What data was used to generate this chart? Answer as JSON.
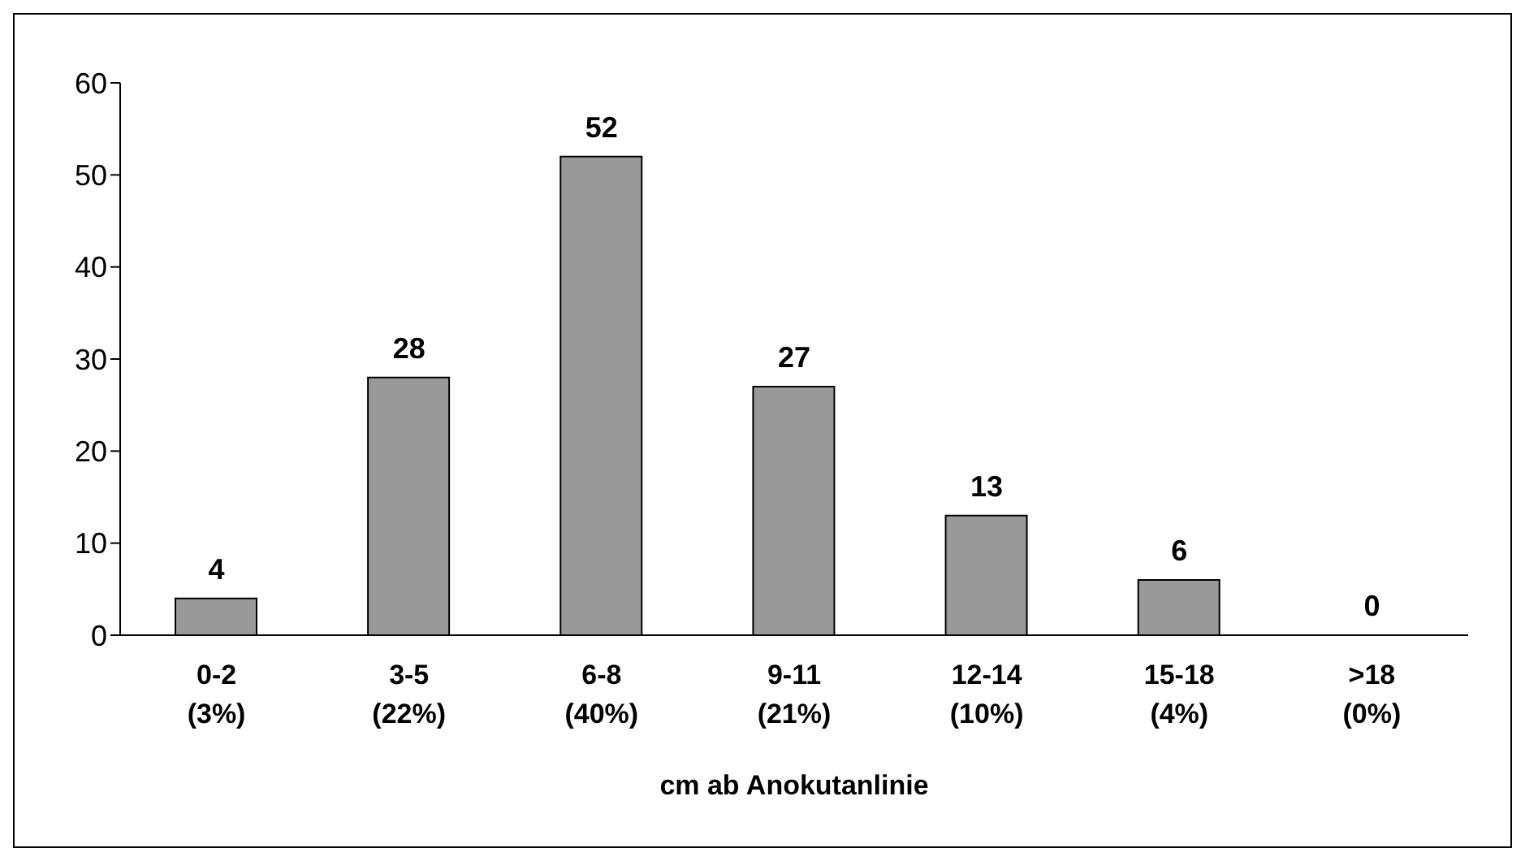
{
  "chart_data": {
    "type": "bar",
    "xlabel": "cm ab Anokutanlinie",
    "categories": [
      "0-2\n(3%)",
      "3-5\n(22%)",
      "6-8\n(40%)",
      "9-11\n(21%)",
      "12-14\n(10%)",
      "15-18\n(4%)",
      ">18\n(0%)"
    ],
    "values": [
      4,
      28,
      52,
      27,
      13,
      6,
      0
    ],
    "color": "#999999",
    "ylim": [
      0,
      60
    ],
    "yticks": [
      0,
      10,
      20,
      30,
      40,
      50,
      60
    ],
    "grid": false,
    "legend": false,
    "data_labels": true
  }
}
